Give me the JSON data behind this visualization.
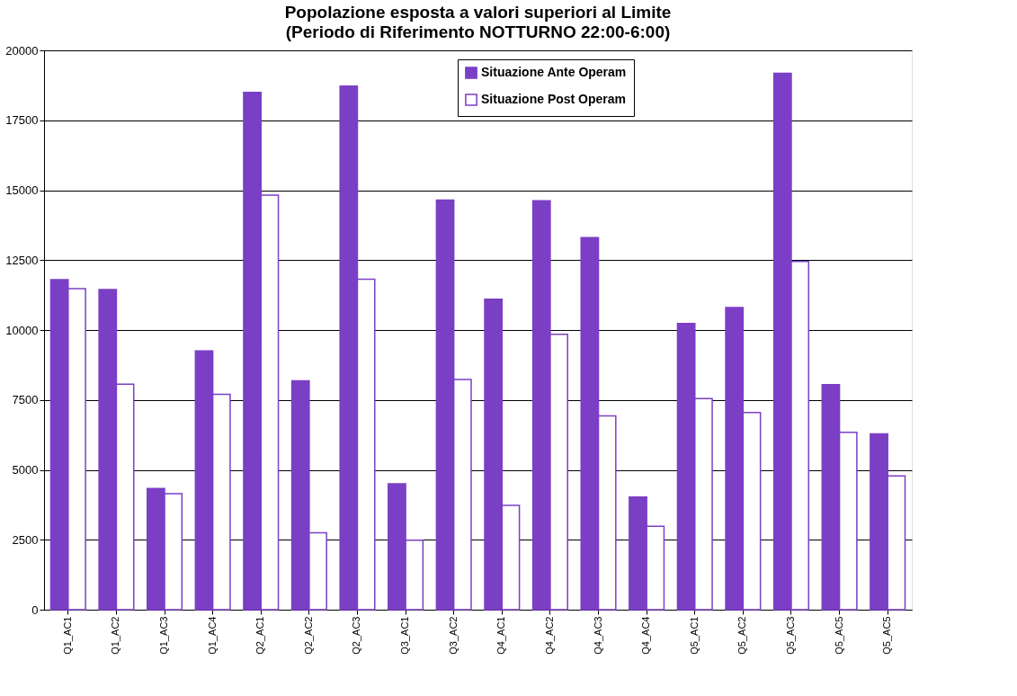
{
  "chart_data": {
    "type": "bar",
    "title": "Popolazione  esposta a valori superiori al Limite",
    "subtitle": "(Periodo di Riferimento NOTTURNO  22:00-6:00)",
    "categories": [
      "Q1_AC1",
      "Q1_AC2",
      "Q1_AC3",
      "Q1_AC4",
      "Q2_AC1",
      "Q2_AC2",
      "Q2_AC3",
      "Q3_AC1",
      "Q3_AC2",
      "Q4_AC1",
      "Q4_AC2",
      "Q4_AC3",
      "Q4_AC4",
      "Q5_AC1",
      "Q5_AC2",
      "Q5_AC3",
      "Q5_AC5",
      "Q5_AC5"
    ],
    "series": [
      {
        "name": "Situazione Ante Operam",
        "color": "#7b3fc6",
        "values": [
          11800,
          11450,
          4330,
          9250,
          18500,
          8180,
          18720,
          4500,
          14650,
          11100,
          14620,
          13300,
          4030,
          10230,
          10800,
          19180,
          8050,
          6290
        ]
      },
      {
        "name": "Situazione Post Operam",
        "color": "#ffffff",
        "values": [
          11480,
          8060,
          4150,
          7700,
          14820,
          2750,
          11820,
          2480,
          8230,
          3730,
          9850,
          6930,
          2980,
          7550,
          7050,
          12450,
          6340,
          4780
        ]
      }
    ],
    "ylim": [
      0,
      20000
    ],
    "yticks": [
      0,
      2500,
      5000,
      7500,
      10000,
      12500,
      15000,
      17500,
      20000
    ],
    "grid": "y",
    "legend": "top right"
  }
}
